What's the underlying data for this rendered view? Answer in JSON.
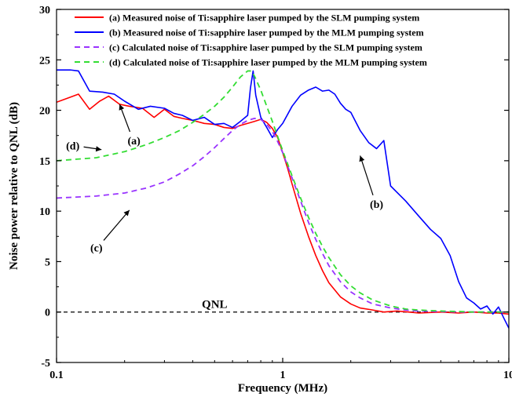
{
  "chart_data": {
    "type": "line",
    "xscale": "log",
    "xlim": [
      0.1,
      10
    ],
    "ylim": [
      -5,
      30
    ],
    "xlabel": "Frequency (MHz)",
    "ylabel": "Noise power relative to QNL (dB)",
    "x_ticks": [
      0.1,
      1,
      10
    ],
    "x_tick_labels": [
      "0.1",
      "1",
      "10"
    ],
    "y_ticks": [
      -5,
      0,
      5,
      10,
      15,
      20,
      25,
      30
    ],
    "y_tick_labels": [
      "-5",
      "0",
      "5",
      "10",
      "15",
      "20",
      "25",
      "30"
    ],
    "legend_position": "top-right",
    "grid": false,
    "series": [
      {
        "name": "(a) Measured noise of Ti:sapphire laser pumped by the SLM pumping system",
        "color": "#ff0000",
        "style": "solid",
        "x": [
          0.1,
          0.115,
          0.125,
          0.14,
          0.155,
          0.17,
          0.19,
          0.21,
          0.24,
          0.27,
          0.3,
          0.33,
          0.36,
          0.4,
          0.45,
          0.5,
          0.55,
          0.6,
          0.65,
          0.7,
          0.75,
          0.8,
          0.85,
          0.9,
          0.95,
          1.0,
          1.05,
          1.1,
          1.2,
          1.3,
          1.4,
          1.5,
          1.6,
          1.8,
          2.0,
          2.2,
          2.5,
          2.8,
          3.2,
          3.6,
          4.0,
          5.0,
          6.0,
          7.0,
          8.0,
          9.0,
          10.0
        ],
        "y": [
          20.8,
          21.3,
          21.6,
          20.1,
          20.9,
          21.4,
          20.6,
          20.4,
          20.2,
          19.3,
          20.1,
          19.4,
          19.2,
          19.0,
          18.7,
          18.6,
          18.3,
          18.2,
          18.5,
          18.7,
          18.9,
          19.1,
          18.8,
          18.2,
          17.3,
          15.8,
          14.3,
          12.7,
          9.8,
          7.5,
          5.6,
          4.1,
          2.9,
          1.5,
          0.8,
          0.4,
          0.2,
          0.0,
          0.1,
          0.0,
          -0.1,
          0.0,
          -0.1,
          0.0,
          -0.1,
          -0.1,
          -0.2
        ]
      },
      {
        "name": "(b) Measured noise of Ti:sapphire laser pumped by the MLM pumping system",
        "color": "#0000ff",
        "style": "solid",
        "x": [
          0.1,
          0.115,
          0.125,
          0.14,
          0.16,
          0.18,
          0.2,
          0.23,
          0.26,
          0.3,
          0.33,
          0.36,
          0.4,
          0.45,
          0.5,
          0.55,
          0.6,
          0.65,
          0.7,
          0.72,
          0.74,
          0.76,
          0.8,
          0.85,
          0.9,
          0.95,
          1.0,
          1.1,
          1.2,
          1.3,
          1.4,
          1.5,
          1.6,
          1.7,
          1.8,
          1.9,
          2.0,
          2.2,
          2.4,
          2.6,
          2.8,
          3.0,
          3.5,
          4.0,
          4.5,
          5.0,
          5.5,
          6.0,
          6.5,
          7.0,
          7.5,
          8.0,
          8.5,
          9.0,
          9.5,
          10.0
        ],
        "y": [
          24.0,
          24.0,
          23.9,
          21.9,
          21.8,
          21.6,
          20.9,
          20.1,
          20.4,
          20.2,
          19.7,
          19.5,
          19.0,
          19.3,
          18.6,
          18.7,
          18.3,
          18.9,
          19.5,
          22.2,
          23.9,
          21.5,
          19.3,
          18.3,
          17.3,
          18.1,
          18.7,
          20.4,
          21.5,
          22.0,
          22.3,
          21.9,
          22.0,
          21.6,
          20.7,
          20.1,
          19.8,
          18.0,
          16.8,
          16.2,
          17.0,
          12.5,
          11.0,
          9.5,
          8.2,
          7.3,
          5.6,
          3.0,
          1.4,
          0.9,
          0.3,
          0.6,
          -0.2,
          0.5,
          -0.6,
          -1.6
        ]
      },
      {
        "name": "(c) Calculated noise of Ti:sapphire laser pumped by  the SLM pumping system",
        "color": "#9933ff",
        "style": "dashed",
        "x": [
          0.1,
          0.15,
          0.2,
          0.25,
          0.3,
          0.35,
          0.4,
          0.45,
          0.5,
          0.55,
          0.6,
          0.65,
          0.7,
          0.75,
          0.8,
          0.85,
          0.9,
          0.95,
          1.0,
          1.1,
          1.2,
          1.3,
          1.4,
          1.5,
          1.6,
          1.8,
          2.0,
          2.2,
          2.5,
          3.0,
          3.5,
          4.0,
          5.0,
          6.0,
          7.0,
          8.0,
          10.0
        ],
        "y": [
          11.3,
          11.5,
          11.8,
          12.3,
          12.9,
          13.7,
          14.5,
          15.4,
          16.3,
          17.2,
          18.0,
          18.6,
          19.0,
          19.2,
          19.1,
          18.6,
          17.9,
          16.9,
          15.8,
          13.3,
          11.0,
          8.9,
          7.2,
          5.8,
          4.6,
          3.0,
          2.0,
          1.4,
          0.8,
          0.4,
          0.2,
          0.1,
          0.05,
          0.0,
          0.0,
          0.0,
          0.0
        ]
      },
      {
        "name": "(d) Calculated noise of Ti:sapphire laser pumped by the MLM pumping system",
        "color": "#33dd33",
        "style": "dashed",
        "x": [
          0.1,
          0.15,
          0.2,
          0.25,
          0.3,
          0.35,
          0.4,
          0.45,
          0.5,
          0.55,
          0.6,
          0.65,
          0.7,
          0.725,
          0.75,
          0.8,
          0.85,
          0.9,
          0.95,
          1.0,
          1.1,
          1.2,
          1.3,
          1.4,
          1.5,
          1.6,
          1.8,
          2.0,
          2.2,
          2.5,
          3.0,
          3.5,
          4.0,
          5.0,
          6.0,
          7.0,
          8.0,
          10.0
        ],
        "y": [
          15.0,
          15.3,
          15.9,
          16.6,
          17.3,
          18.0,
          18.8,
          19.6,
          20.4,
          21.3,
          22.3,
          23.3,
          23.9,
          23.9,
          23.4,
          22.0,
          20.4,
          18.9,
          17.4,
          16.0,
          13.5,
          11.3,
          9.4,
          7.8,
          6.5,
          5.4,
          3.7,
          2.6,
          1.9,
          1.2,
          0.6,
          0.3,
          0.2,
          0.1,
          0.05,
          0.0,
          0.0,
          0.0
        ]
      }
    ],
    "reference_line": {
      "y": 0,
      "label": "QNL",
      "color": "#000000",
      "style": "dashed"
    },
    "annotations": [
      {
        "text": "(a)",
        "x": 0.22,
        "y": 17.0,
        "arrow_to": [
          0.19,
          20.6
        ]
      },
      {
        "text": "(b)",
        "x": 2.6,
        "y": 10.7,
        "arrow_to": [
          2.2,
          15.5
        ]
      },
      {
        "text": "(c)",
        "x": 0.15,
        "y": 6.4,
        "arrow_to": [
          0.21,
          10.1
        ]
      },
      {
        "text": "(d)",
        "x": 0.118,
        "y": 16.5,
        "arrow_to": [
          0.158,
          16.1
        ]
      }
    ]
  }
}
